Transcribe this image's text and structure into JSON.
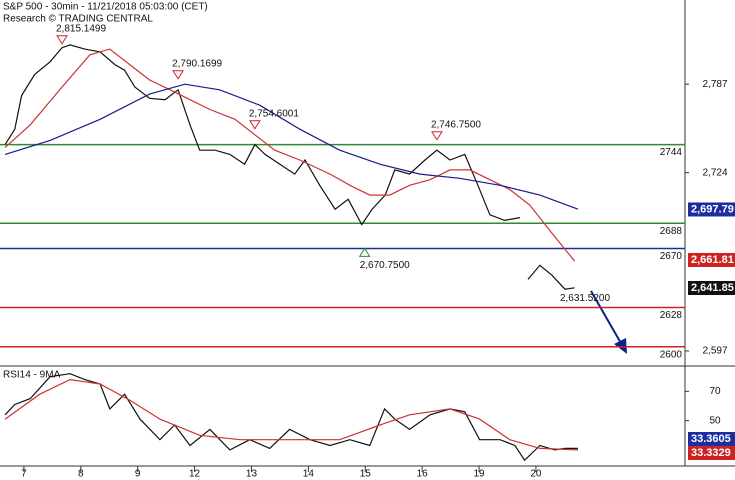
{
  "chart_data": [
    {
      "type": "line",
      "title": "S&P 500 - 30min - 11/21/2018 05:03:00 (CET)",
      "subtitle": "Research © TRADING CENTRAL",
      "xlim": [
        -0.42,
        11.62
      ],
      "ylim": [
        2587,
        2847
      ],
      "yticks": [
        {
          "value": 2787,
          "label": "2,787"
        },
        {
          "value": 2724,
          "label": "2,724"
        },
        {
          "value": 2597,
          "label": "2,597"
        }
      ],
      "series": [
        {
          "color": "#111111",
          "x": [
            -0.33,
            -0.16,
            -0.04,
            0.19,
            0.46,
            0.67,
            0.81,
            1.07,
            1.34,
            1.6,
            1.77,
            1.95,
            2.21,
            2.48,
            2.71,
            2.92,
            3.09,
            3.36,
            3.62,
            3.88,
            4.06,
            4.24,
            4.5,
            4.76,
            4.94,
            5.2,
            5.47,
            5.7,
            5.94,
            6.12,
            6.35,
            6.52,
            6.78,
            7.05,
            7.26,
            7.49,
            7.75,
            7.98,
            8.19,
            8.45,
            8.72,
            null,
            8.86,
            9.07,
            9.28,
            9.51,
            9.68
          ],
          "values": [
            2744,
            2755,
            2779,
            2794,
            2803,
            2813,
            2815,
            2812,
            2810,
            2801,
            2797,
            2785,
            2777,
            2776,
            2783,
            2758,
            2740,
            2740,
            2737,
            2730,
            2744,
            2737,
            2730,
            2723,
            2733,
            2715,
            2698,
            2705,
            2687,
            2698,
            2708,
            2726,
            2723,
            2733,
            2740,
            2733,
            2737,
            2715,
            2694,
            2690,
            2692,
            null,
            2648,
            2658,
            2651,
            2641,
            2642
          ]
        },
        {
          "color": "#cc3333",
          "x": [
            -0.33,
            0.11,
            0.63,
            1.16,
            1.51,
            1.86,
            2.21,
            2.57,
            2.92,
            3.27,
            3.71,
            4.06,
            4.41,
            4.85,
            5.38,
            5.73,
            6.08,
            6.43,
            6.78,
            7.14,
            7.49,
            7.84,
            8.19,
            8.54,
            8.89,
            9.24,
            9.68
          ],
          "values": [
            2742,
            2758,
            2783,
            2808,
            2812,
            2801,
            2790,
            2783,
            2776,
            2769,
            2762,
            2751,
            2740,
            2733,
            2723,
            2715,
            2708,
            2708,
            2715,
            2719,
            2726,
            2726,
            2719,
            2712,
            2701,
            2683,
            2661
          ]
        },
        {
          "color": "#1a1a8c",
          "x": [
            -0.33,
            0.46,
            1.34,
            2.21,
            2.83,
            3.44,
            4.15,
            4.85,
            5.55,
            6.26,
            6.96,
            7.66,
            8.37,
            9.07,
            9.74
          ],
          "values": [
            2737,
            2747,
            2762,
            2780,
            2787,
            2783,
            2772,
            2755,
            2740,
            2730,
            2723,
            2720,
            2715,
            2708,
            2698
          ]
        }
      ],
      "levels": [
        {
          "value": 2744,
          "color": "#2e8b2e"
        },
        {
          "value": 2688,
          "color": "#2e8b2e"
        },
        {
          "value": 2670,
          "color": "#1a2ea0"
        },
        {
          "value": 2628,
          "color": "#cc2222"
        },
        {
          "value": 2600,
          "color": "#cc2222"
        }
      ],
      "value_boxes": [
        {
          "value": 2697.79,
          "label": "2,697.79",
          "color": "#1a2ea0"
        },
        {
          "value": 2661.81,
          "label": "2,661.81",
          "color": "#cc2222"
        },
        {
          "value": 2641.85,
          "label": "2,641.85",
          "color": "#111111"
        }
      ],
      "annotations": [
        {
          "x": 0.67,
          "value": 2815.1499,
          "label": "2,815.1499",
          "marker": "down"
        },
        {
          "x": 2.71,
          "value": 2790.1699,
          "label": "2,790.1699",
          "marker": "down"
        },
        {
          "x": 4.06,
          "value": 2754.6001,
          "label": "2,754.6001",
          "marker": "down"
        },
        {
          "x": 7.26,
          "value": 2746.75,
          "label": "2,746.7500",
          "marker": "down"
        },
        {
          "x": 5.99,
          "value": 2670.75,
          "label": "2,670.7500",
          "marker": "up"
        },
        {
          "x": 9.51,
          "value": 2631.52,
          "label": "2,631.5200",
          "marker": "none"
        }
      ]
    },
    {
      "type": "line",
      "title": "RSI14 - 9MA",
      "xlim": [
        -0.42,
        11.62
      ],
      "ylim": [
        19.7,
        86.6
      ],
      "yticks": [
        70,
        50
      ],
      "xticks": [
        {
          "value": 0,
          "label": "7"
        },
        {
          "value": 1,
          "label": "8"
        },
        {
          "value": 2,
          "label": "9"
        },
        {
          "value": 3,
          "label": "12"
        },
        {
          "value": 4,
          "label": "13"
        },
        {
          "value": 5,
          "label": "14"
        },
        {
          "value": 6,
          "label": "15"
        },
        {
          "value": 7,
          "label": "16"
        },
        {
          "value": 8,
          "label": "19"
        },
        {
          "value": 9,
          "label": "20"
        }
      ],
      "series": [
        {
          "color": "#111111",
          "x": [
            -0.33,
            -0.16,
            0.11,
            0.46,
            0.81,
            1.07,
            1.34,
            1.51,
            1.77,
            2.04,
            2.39,
            2.65,
            2.92,
            3.27,
            3.62,
            3.97,
            4.32,
            4.67,
            5.03,
            5.38,
            5.73,
            6.08,
            6.34,
            6.52,
            6.78,
            7.14,
            7.49,
            7.75,
            8.01,
            8.37,
            8.63,
            8.8,
            9.07,
            9.33,
            9.51,
            9.74
          ],
          "values": [
            54,
            61,
            65,
            80,
            82,
            78,
            75,
            58,
            68,
            51,
            37,
            47,
            33,
            44,
            30,
            37,
            31,
            44,
            37,
            33,
            37,
            33,
            58,
            51,
            44,
            54,
            58,
            56,
            37,
            37,
            33,
            23,
            33,
            30,
            31,
            31
          ]
        },
        {
          "color": "#cc3333",
          "x": [
            -0.33,
            0.28,
            0.81,
            1.34,
            1.86,
            2.39,
            3.09,
            3.8,
            4.67,
            5.55,
            6.26,
            6.78,
            7.49,
            8.01,
            8.54,
            9.07,
            9.74
          ],
          "values": [
            51,
            68,
            78,
            75,
            64,
            51,
            40,
            37,
            37,
            37,
            47,
            54,
            58,
            51,
            37,
            31,
            30
          ]
        }
      ],
      "value_boxes": [
        {
          "value": 33.3605,
          "label": "33.3605",
          "color": "#1a2ea0"
        },
        {
          "value": 33.3329,
          "label": "33.3329",
          "color": "#cc2222"
        }
      ]
    }
  ]
}
